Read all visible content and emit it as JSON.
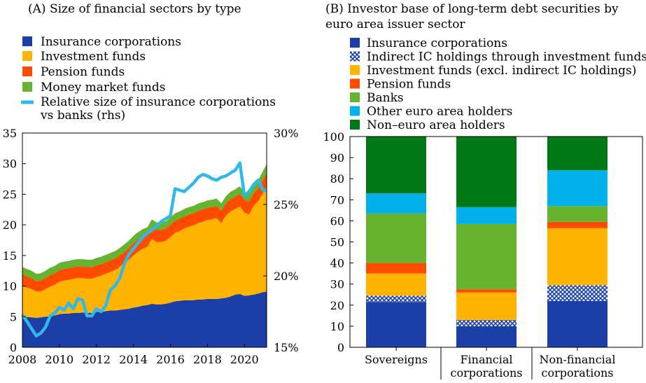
{
  "colors": {
    "insurance": "#1b3fa6",
    "investment": "#ffb400",
    "pension": "#ff4b00",
    "mmf": "#65b32e",
    "relative": "#30b8e8",
    "banks": "#65b32e",
    "other_euro": "#00b1ea",
    "non_euro": "#007816"
  },
  "chart_data": [
    {
      "type": "area",
      "title": "(A) Size of financial sectors by type",
      "xlim": [
        2008,
        2021.2
      ],
      "ylim": [
        0,
        35
      ],
      "y2lim": [
        15,
        30
      ],
      "x_ticks": [
        "2008",
        "2010",
        "2012",
        "2014",
        "2016",
        "2018",
        "2020"
      ],
      "y_ticks": [
        "0",
        "5",
        "10",
        "15",
        "20",
        "25",
        "30",
        "35"
      ],
      "y2_ticks": [
        "15%",
        "20%",
        "25%",
        "30%"
      ],
      "legend": {
        "insurance": "Insurance corporations",
        "investment": "Investment funds",
        "pension": "Pension funds",
        "mmf": "Money market funds",
        "relative_line1": "Relative size of insurance corporations",
        "relative_line2": "vs banks (rhs)"
      },
      "x": [
        2008.0,
        2008.5,
        2008.75,
        2009.0,
        2009.25,
        2009.5,
        2009.75,
        2010.0,
        2010.25,
        2010.5,
        2010.75,
        2011.0,
        2011.25,
        2011.5,
        2011.75,
        2012.0,
        2012.25,
        2012.5,
        2012.75,
        2013.0,
        2013.25,
        2013.5,
        2013.75,
        2014.0,
        2014.25,
        2014.5,
        2014.75,
        2015.0,
        2015.25,
        2015.5,
        2015.75,
        2016.0,
        2016.25,
        2016.5,
        2016.75,
        2017.0,
        2017.25,
        2017.5,
        2017.75,
        2018.0,
        2018.25,
        2018.5,
        2018.75,
        2019.0,
        2019.25,
        2019.5,
        2019.75,
        2020.0,
        2020.25,
        2020.5,
        2020.75,
        2021.0,
        2021.2
      ],
      "series": [
        {
          "name": "Insurance corporations",
          "stack": "insurance",
          "values": [
            5.0,
            4.9,
            4.8,
            4.9,
            5.0,
            5.1,
            5.2,
            5.4,
            5.5,
            5.5,
            5.6,
            5.6,
            5.7,
            5.6,
            5.6,
            5.8,
            5.8,
            5.9,
            6.0,
            6.0,
            6.1,
            6.2,
            6.3,
            6.5,
            6.6,
            6.8,
            6.9,
            7.1,
            7.0,
            7.0,
            7.1,
            7.3,
            7.5,
            7.6,
            7.7,
            7.7,
            7.7,
            7.8,
            7.8,
            7.9,
            7.9,
            7.9,
            8.0,
            8.1,
            8.3,
            8.6,
            8.7,
            8.4,
            8.5,
            8.6,
            8.8,
            9.0,
            9.1
          ]
        },
        {
          "name": "Investment funds",
          "stack": "investment",
          "values": [
            5.0,
            4.6,
            4.3,
            4.2,
            4.5,
            4.8,
            5.0,
            5.3,
            5.4,
            5.5,
            5.6,
            5.7,
            5.6,
            5.6,
            5.6,
            5.7,
            5.9,
            6.1,
            6.3,
            6.6,
            7.0,
            7.5,
            8.0,
            8.5,
            9.0,
            9.3,
            9.5,
            10.6,
            10.2,
            10.2,
            10.3,
            10.7,
            11.2,
            11.4,
            11.7,
            12.0,
            12.2,
            12.5,
            12.7,
            12.9,
            13.0,
            13.2,
            12.3,
            13.4,
            13.9,
            14.0,
            14.3,
            13.6,
            13.2,
            14.5,
            15.1,
            16.2,
            17.1
          ]
        },
        {
          "name": "Pension funds",
          "stack": "pension",
          "values": [
            1.9,
            1.8,
            1.7,
            1.8,
            1.8,
            1.9,
            1.9,
            1.9,
            1.9,
            1.9,
            1.9,
            1.9,
            1.9,
            1.9,
            1.9,
            1.9,
            1.9,
            1.9,
            1.9,
            1.9,
            1.9,
            1.9,
            1.9,
            2.0,
            2.0,
            2.0,
            2.0,
            2.0,
            2.0,
            2.0,
            2.0,
            2.0,
            2.0,
            2.0,
            2.0,
            2.0,
            2.0,
            2.0,
            2.0,
            2.0,
            2.0,
            2.0,
            2.0,
            2.0,
            2.0,
            2.0,
            2.1,
            2.1,
            2.1,
            2.1,
            2.1,
            2.2,
            2.2
          ]
        },
        {
          "name": "Money market funds",
          "stack": "mmf",
          "values": [
            1.2,
            1.2,
            1.2,
            1.2,
            1.2,
            1.2,
            1.2,
            1.2,
            1.2,
            1.2,
            1.2,
            1.2,
            1.2,
            1.2,
            1.2,
            1.2,
            1.2,
            1.2,
            1.2,
            1.2,
            1.2,
            1.2,
            1.2,
            1.2,
            1.2,
            1.2,
            1.2,
            1.2,
            1.2,
            1.2,
            1.2,
            1.2,
            1.2,
            1.2,
            1.2,
            1.2,
            1.2,
            1.2,
            1.2,
            1.2,
            1.2,
            1.2,
            1.2,
            1.2,
            1.2,
            1.2,
            1.2,
            1.2,
            1.3,
            1.3,
            1.3,
            1.4,
            1.5
          ]
        },
        {
          "name": "Relative size of insurance corporations vs banks (rhs)",
          "axis": "right",
          "stack": "relative",
          "values": [
            17.3,
            16.3,
            15.8,
            16.0,
            16.4,
            17.2,
            17.4,
            17.8,
            17.6,
            18.1,
            17.7,
            18.4,
            18.3,
            17.2,
            17.2,
            17.7,
            17.5,
            17.9,
            19.0,
            19.3,
            19.8,
            20.8,
            21.5,
            21.9,
            22.3,
            22.7,
            23.0,
            23.2,
            23.5,
            23.8,
            24.0,
            24.2,
            26.1,
            26.0,
            25.9,
            26.2,
            26.5,
            26.9,
            27.1,
            27.0,
            26.8,
            26.7,
            26.9,
            27.0,
            27.2,
            27.4,
            27.9,
            25.6,
            25.9,
            26.4,
            26.7,
            26.0,
            26.0
          ]
        }
      ]
    },
    {
      "type": "bar",
      "stacked": true,
      "title_line1": "(B) Investor base of long-term debt securities by",
      "title_line2": "euro area issuer sector",
      "ylim": [
        0,
        100
      ],
      "y_ticks": [
        "0",
        "10",
        "20",
        "30",
        "40",
        "50",
        "60",
        "70",
        "80",
        "90",
        "100"
      ],
      "categories": [
        {
          "line1": "Sovereigns",
          "line2": ""
        },
        {
          "line1": "Financial",
          "line2": "corporations"
        },
        {
          "line1": "Non-financial",
          "line2": "corporations"
        }
      ],
      "series": [
        {
          "name": "Insurance corporations",
          "key": "insurance",
          "values": [
            21.5,
            10.0,
            22.0
          ]
        },
        {
          "name": "Indirect IC holdings through investment funds",
          "key": "indirect",
          "values": [
            3.0,
            3.0,
            7.5
          ]
        },
        {
          "name": "Investment funds (excl. indirect IC holdings)",
          "key": "investment",
          "values": [
            10.5,
            13.0,
            27.0
          ]
        },
        {
          "name": "Pension funds",
          "key": "pension",
          "values": [
            5.0,
            1.5,
            3.0
          ]
        },
        {
          "name": "Banks",
          "key": "banks",
          "values": [
            23.5,
            31.0,
            7.5
          ]
        },
        {
          "name": "Other euro area holders",
          "key": "other_euro",
          "values": [
            9.5,
            8.0,
            17.0
          ]
        },
        {
          "name": "Non–euro area holders",
          "key": "non_euro",
          "values": [
            27.0,
            33.5,
            16.0
          ]
        }
      ]
    }
  ]
}
